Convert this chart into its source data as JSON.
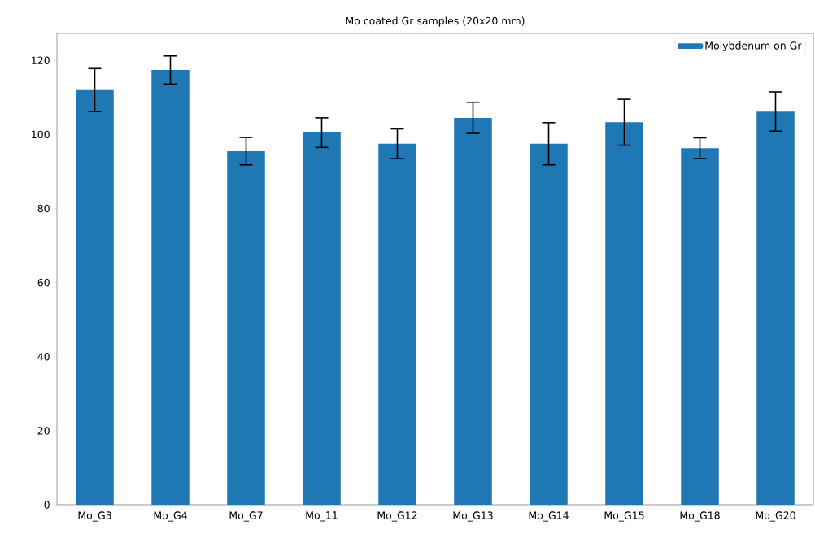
{
  "chart_data": {
    "type": "bar",
    "title": "Mo coated Gr samples (20x20 mm)",
    "categories": [
      "Mo_G3",
      "Mo_G4",
      "Mo_G7",
      "Mo_11",
      "Mo_G12",
      "Mo_G13",
      "Mo_G14",
      "Mo_G15",
      "Mo_G18",
      "Mo_G20"
    ],
    "series": [
      {
        "name": "Molybdenum on Gr",
        "color": "#1f77b4",
        "values": [
          112.0,
          117.4,
          95.5,
          100.5,
          97.5,
          104.5,
          97.5,
          103.3,
          96.3,
          106.2
        ],
        "errors": [
          5.8,
          3.8,
          3.7,
          4.0,
          4.0,
          4.2,
          5.7,
          6.2,
          2.8,
          5.3
        ]
      }
    ],
    "ylim": [
      0,
      127.3
    ],
    "yticks": [
      0,
      20,
      40,
      60,
      80,
      100,
      120
    ],
    "legend": "top right",
    "grid": false
  }
}
